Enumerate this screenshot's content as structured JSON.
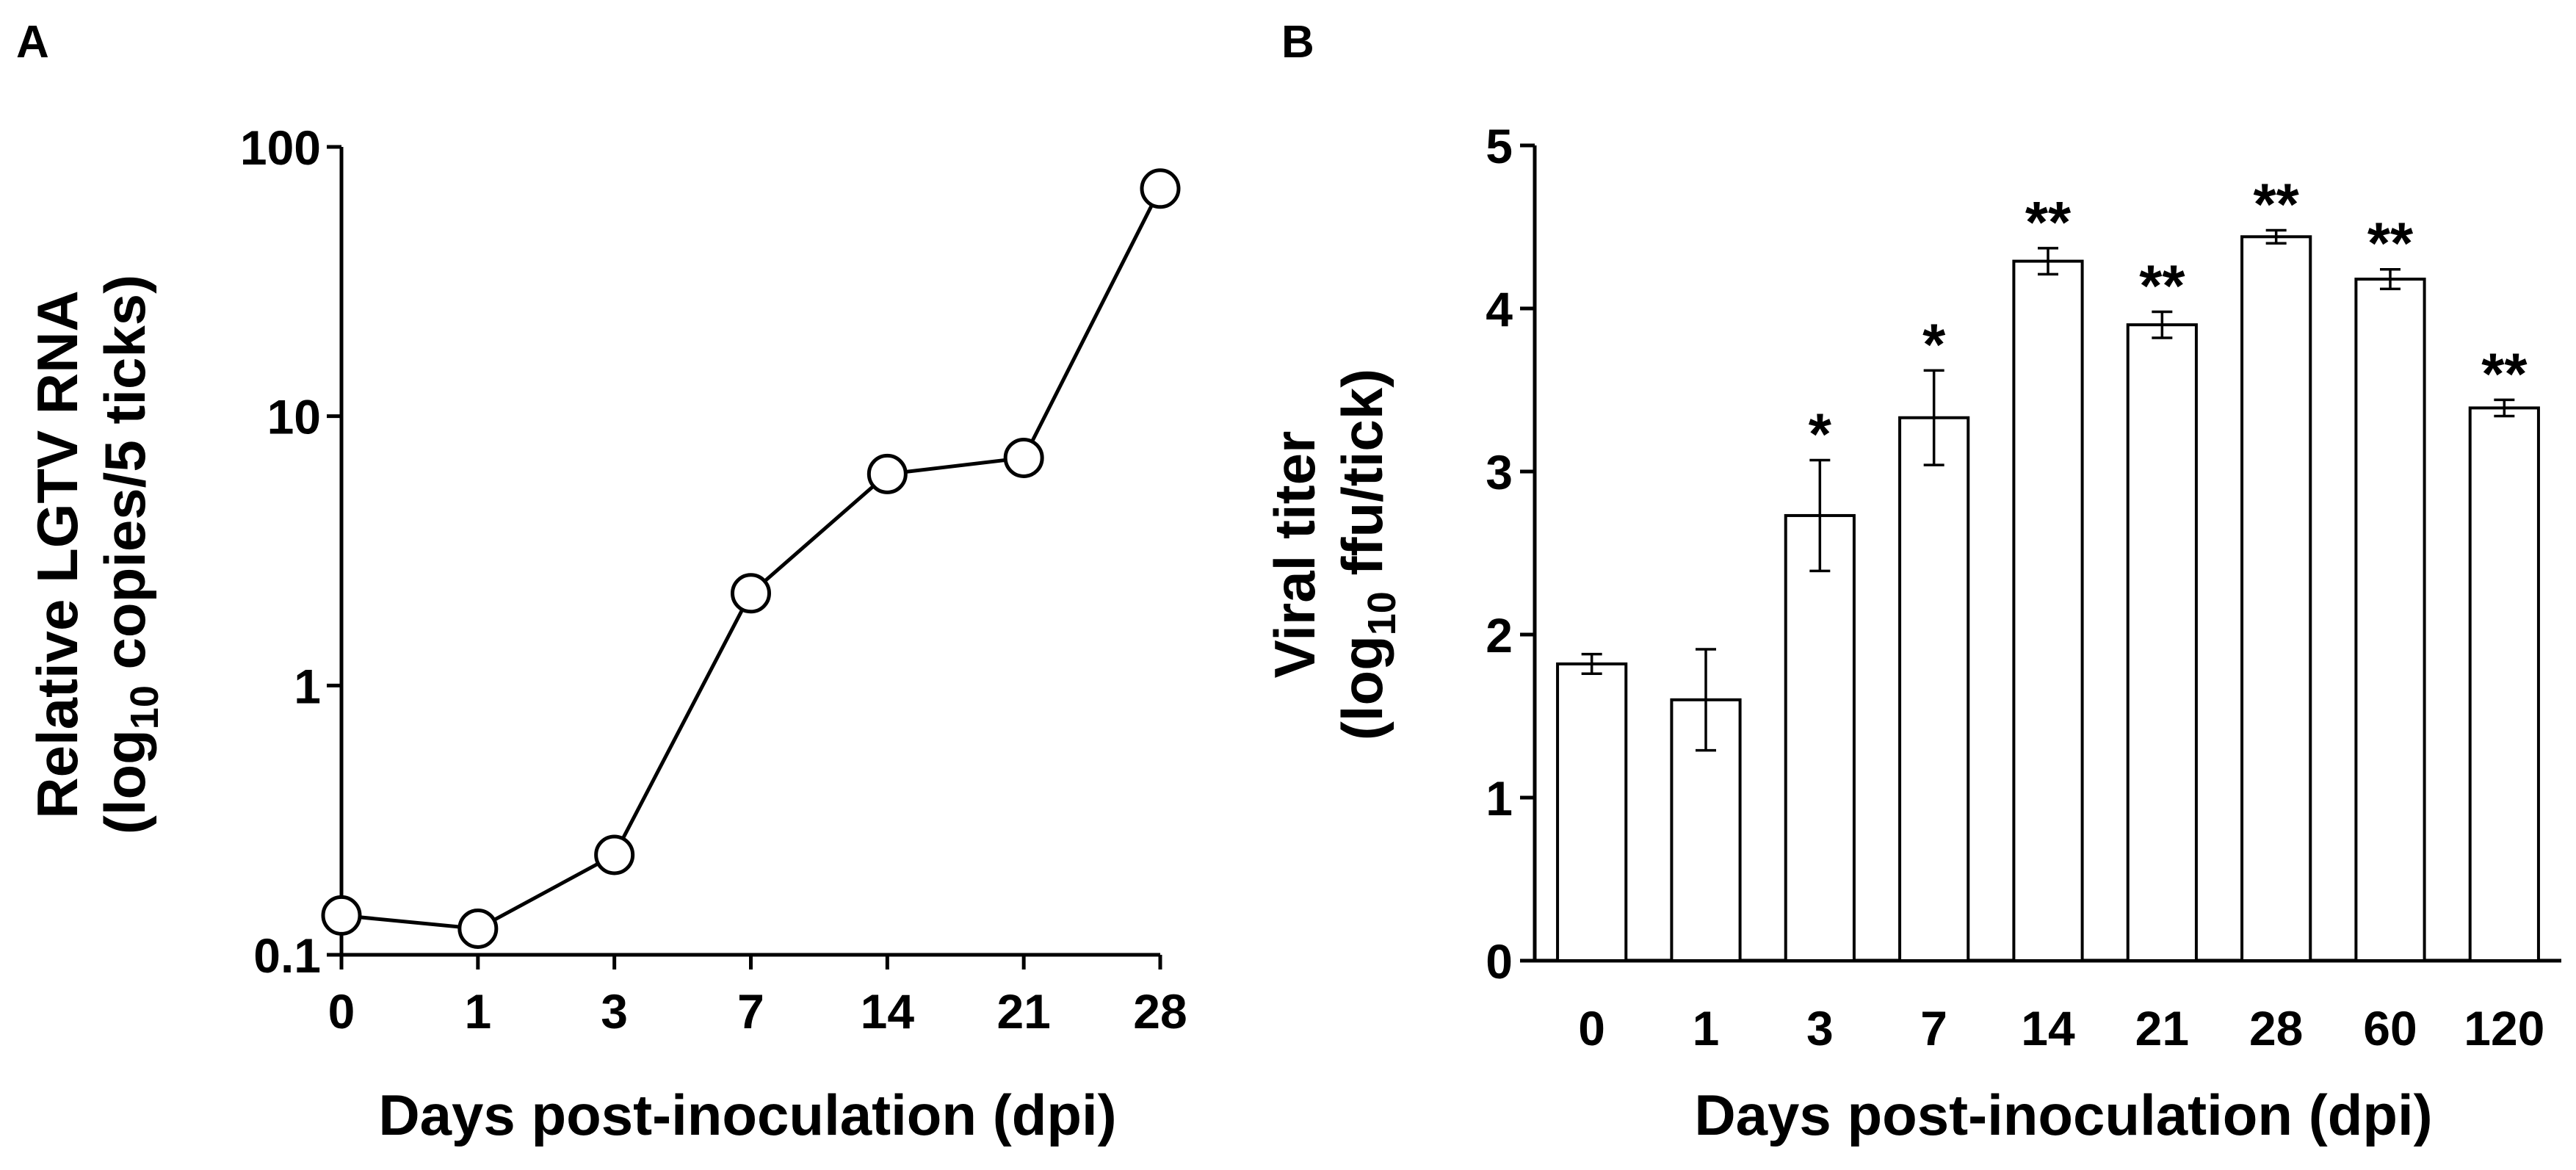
{
  "chart_data": [
    {
      "panel_label": "A",
      "type": "line",
      "yscale": "log",
      "x_categories": [
        "0",
        "1",
        "3",
        "7",
        "14",
        "21",
        "28"
      ],
      "values": [
        0.14,
        0.125,
        0.235,
        2.2,
        6.1,
        7.0,
        70
      ],
      "ylim": [
        0.1,
        100
      ],
      "yticks": [
        0.1,
        1,
        10,
        100
      ],
      "ytick_labels": [
        "0.1",
        "1",
        "10",
        "100"
      ],
      "ylabel_line1": "Relative LGTV RNA",
      "ylabel_line2_prefix": "(log",
      "ylabel_line2_sub": "10",
      "ylabel_line2_suffix": " copies/5 ticks)",
      "xlabel": "Days post-inoculation (dpi)",
      "marker": "open-circle",
      "grid": false
    },
    {
      "panel_label": "B",
      "type": "bar",
      "categories": [
        "0",
        "1",
        "3",
        "7",
        "14",
        "21",
        "28",
        "60",
        "120"
      ],
      "values": [
        1.82,
        1.6,
        2.73,
        3.33,
        4.29,
        3.9,
        4.44,
        4.18,
        3.39
      ],
      "errors": [
        0.06,
        0.31,
        0.34,
        0.29,
        0.08,
        0.08,
        0.04,
        0.06,
        0.05
      ],
      "significance": [
        "",
        "",
        "*",
        "*",
        "**",
        "**",
        "**",
        "**",
        "**"
      ],
      "ylim": [
        0,
        5
      ],
      "yticks": [
        0,
        1,
        2,
        3,
        4,
        5
      ],
      "ylabel_line1": "Viral titer",
      "ylabel_line2_prefix": "(log",
      "ylabel_line2_sub": "10",
      "ylabel_line2_suffix": " ffu/tick)",
      "xlabel": "Days post-inoculation (dpi)",
      "grid": false
    }
  ]
}
